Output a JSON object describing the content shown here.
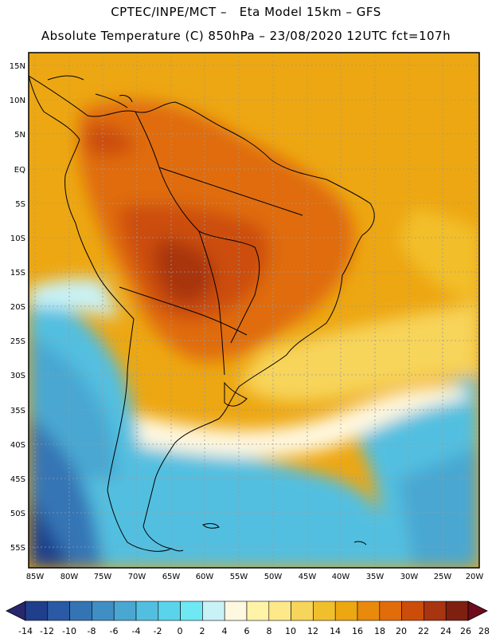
{
  "header": {
    "line1": "CPTEC/INPE/MCT –   Eta Model 15km – GFS",
    "line2": "Absolute Temperature (C) 850hPa – 23/08/2020 12UTC fct=107h"
  },
  "map": {
    "lat_labels": [
      "15N",
      "10N",
      "5N",
      "EQ",
      "5S",
      "10S",
      "15S",
      "20S",
      "25S",
      "30S",
      "35S",
      "40S",
      "45S",
      "50S",
      "55S"
    ],
    "lon_labels": [
      "85W",
      "80W",
      "75W",
      "70W",
      "65W",
      "60W",
      "55W",
      "50W",
      "45W",
      "40W",
      "35W",
      "30W",
      "25W",
      "20W"
    ]
  },
  "colorbar": {
    "labels": [
      "-14",
      "-12",
      "-10",
      "-8",
      "-6",
      "-4",
      "-2",
      "0",
      "2",
      "4",
      "6",
      "8",
      "10",
      "12",
      "14",
      "16",
      "18",
      "20",
      "22",
      "24",
      "26",
      "28"
    ],
    "colors": [
      "#1f3f8c",
      "#2a5aa5",
      "#3474b5",
      "#3f8fc4",
      "#4aa7d2",
      "#52bfe0",
      "#5ad4ea",
      "#6ee8f2",
      "#c9f2f6",
      "#fff8e0",
      "#fff3a8",
      "#fde98a",
      "#f7d45a",
      "#f2bf2c",
      "#eda712",
      "#e98a0c",
      "#e06c0a",
      "#cc4d0a",
      "#a83410",
      "#7d2010"
    ]
  }
}
